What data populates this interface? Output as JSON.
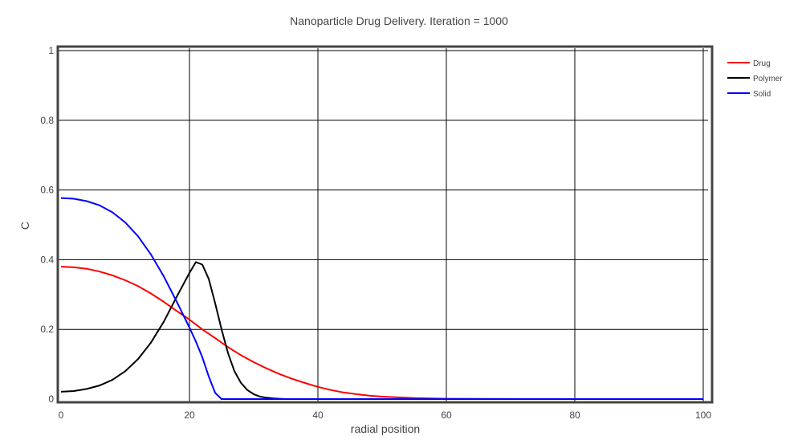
{
  "chart_data": {
    "type": "line",
    "title": "Nanoparticle Drug Delivery. Iteration = 1000",
    "xlabel": "radial position",
    "ylabel": "C",
    "xlim": [
      0,
      100
    ],
    "ylim": [
      0,
      1
    ],
    "x_ticks": [
      0,
      20,
      40,
      60,
      80,
      100
    ],
    "y_ticks": [
      0,
      0.2,
      0.4,
      0.6,
      0.8,
      1
    ],
    "x_tick_labels": [
      "0",
      "20",
      "40",
      "60",
      "80",
      "100"
    ],
    "y_tick_labels": [
      "0",
      "0.2",
      "0.4",
      "0.6",
      "0.8",
      "1"
    ],
    "grid": true,
    "legend_position": "top-right",
    "series": [
      {
        "name": "Drug",
        "color": "#ff0000",
        "x": [
          0,
          2,
          4,
          6,
          8,
          10,
          12,
          14,
          16,
          18,
          20,
          22,
          24,
          26,
          28,
          30,
          32,
          34,
          36,
          38,
          40,
          42,
          44,
          46,
          48,
          50,
          55,
          60,
          65,
          70,
          80,
          90,
          100
        ],
        "y": [
          0.38,
          0.378,
          0.374,
          0.366,
          0.355,
          0.341,
          0.324,
          0.303,
          0.279,
          0.253,
          0.228,
          0.2,
          0.175,
          0.149,
          0.126,
          0.106,
          0.088,
          0.072,
          0.058,
          0.046,
          0.035,
          0.026,
          0.019,
          0.014,
          0.01,
          0.007,
          0.003,
          0.001,
          0.0005,
          0.0002,
          0,
          0,
          0
        ]
      },
      {
        "name": "Polymer",
        "color": "#000000",
        "x": [
          0,
          2,
          4,
          6,
          8,
          10,
          12,
          14,
          16,
          18,
          20,
          21,
          22,
          23,
          24,
          25,
          26,
          27,
          28,
          29,
          30,
          31,
          32,
          33,
          34,
          35,
          40,
          50,
          60,
          80,
          100
        ],
        "y": [
          0.021,
          0.023,
          0.029,
          0.039,
          0.055,
          0.08,
          0.115,
          0.162,
          0.222,
          0.293,
          0.362,
          0.393,
          0.386,
          0.345,
          0.275,
          0.2,
          0.132,
          0.08,
          0.047,
          0.026,
          0.014,
          0.007,
          0.004,
          0.002,
          0.001,
          0,
          0,
          0,
          0,
          0,
          0
        ]
      },
      {
        "name": "Solid",
        "color": "#0000ff",
        "x": [
          0,
          2,
          4,
          6,
          8,
          10,
          12,
          14,
          16,
          18,
          20,
          21,
          22,
          23,
          24,
          25,
          26,
          30,
          40,
          50,
          60,
          80,
          100
        ],
        "y": [
          0.577,
          0.575,
          0.568,
          0.556,
          0.536,
          0.507,
          0.467,
          0.415,
          0.352,
          0.28,
          0.205,
          0.165,
          0.12,
          0.065,
          0.018,
          0,
          0,
          0,
          0,
          0,
          0,
          0,
          0
        ]
      }
    ]
  }
}
